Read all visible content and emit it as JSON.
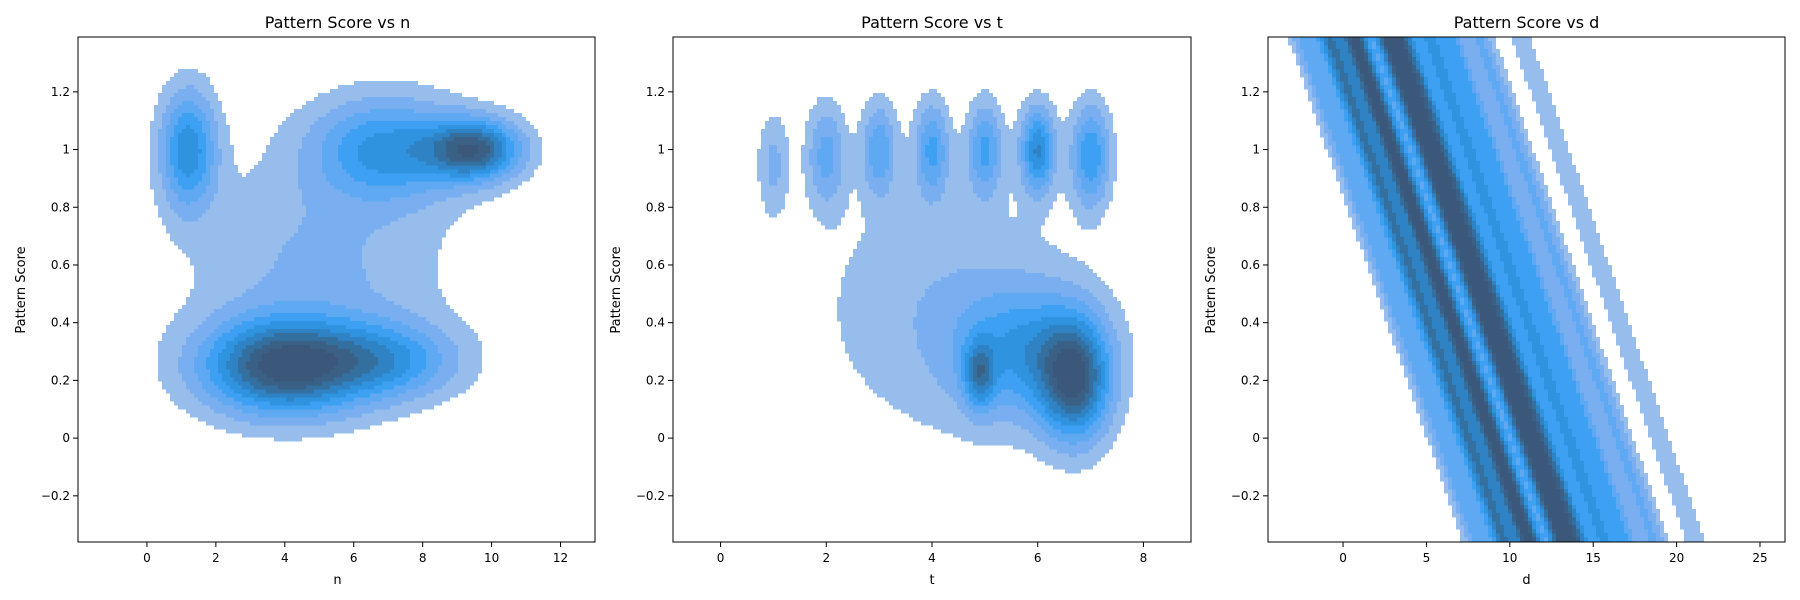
{
  "chart_data": [
    {
      "type": "kde-contour",
      "title": "Pattern Score vs n",
      "xlabel": "n",
      "ylabel": "Pattern Score",
      "xlim": [
        -2,
        13
      ],
      "ylim": [
        -0.36,
        1.39
      ],
      "xticks": [
        0,
        2,
        4,
        6,
        8,
        10,
        12
      ],
      "yticks": [
        -0.2,
        0.0,
        0.2,
        0.4,
        0.6,
        0.8,
        1.0,
        1.2
      ],
      "levels": 9,
      "density_peaks": [
        {
          "x": 4.0,
          "y": 0.25,
          "sx": 1.6,
          "sy": 0.11,
          "w": 1.0
        },
        {
          "x": 7.0,
          "y": 0.27,
          "sx": 1.4,
          "sy": 0.09,
          "w": 0.45
        },
        {
          "x": 9.5,
          "y": 1.0,
          "sx": 0.9,
          "sy": 0.07,
          "w": 0.85
        },
        {
          "x": 7.0,
          "y": 1.0,
          "sx": 1.5,
          "sy": 0.12,
          "w": 0.55
        },
        {
          "x": 1.2,
          "y": 1.0,
          "sx": 0.55,
          "sy": 0.14,
          "w": 0.6
        },
        {
          "x": 5.0,
          "y": 0.6,
          "sx": 2.5,
          "sy": 0.25,
          "w": 0.2
        }
      ]
    },
    {
      "type": "kde-contour",
      "title": "Pattern Score vs t",
      "xlabel": "t",
      "ylabel": "Pattern Score",
      "xlim": [
        -0.9,
        8.9
      ],
      "ylim": [
        -0.36,
        1.39
      ],
      "xticks": [
        0,
        2,
        4,
        6,
        8
      ],
      "yticks": [
        -0.2,
        0.0,
        0.2,
        0.4,
        0.6,
        0.8,
        1.0,
        1.2
      ],
      "levels": 9,
      "density_peaks": [
        {
          "x": 6.7,
          "y": 0.2,
          "sx": 0.45,
          "sy": 0.14,
          "w": 1.0
        },
        {
          "x": 4.9,
          "y": 0.22,
          "sx": 0.2,
          "sy": 0.08,
          "w": 0.6
        },
        {
          "x": 5.8,
          "y": 0.3,
          "sx": 0.9,
          "sy": 0.15,
          "w": 0.55
        },
        {
          "x": 6.0,
          "y": 1.0,
          "sx": 0.22,
          "sy": 0.1,
          "w": 0.75
        },
        {
          "x": 7.0,
          "y": 0.98,
          "sx": 0.25,
          "sy": 0.12,
          "w": 0.6
        },
        {
          "x": 5.0,
          "y": 1.0,
          "sx": 0.22,
          "sy": 0.11,
          "w": 0.5
        },
        {
          "x": 4.0,
          "y": 1.0,
          "sx": 0.22,
          "sy": 0.11,
          "w": 0.5
        },
        {
          "x": 3.0,
          "y": 1.0,
          "sx": 0.22,
          "sy": 0.11,
          "w": 0.45
        },
        {
          "x": 2.0,
          "y": 0.98,
          "sx": 0.25,
          "sy": 0.12,
          "w": 0.4
        },
        {
          "x": 1.0,
          "y": 0.95,
          "sx": 0.2,
          "sy": 0.12,
          "w": 0.25
        },
        {
          "x": 4.2,
          "y": 0.45,
          "sx": 1.6,
          "sy": 0.3,
          "w": 0.2
        }
      ]
    },
    {
      "type": "kde-contour",
      "title": "Pattern Score vs d",
      "xlabel": "d",
      "ylabel": "Pattern Score",
      "xlim": [
        -4.5,
        26.5
      ],
      "ylim": [
        -0.36,
        1.39
      ],
      "xticks": [
        0,
        5,
        10,
        15,
        20,
        25
      ],
      "yticks": [
        -0.2,
        0.0,
        0.2,
        0.4,
        0.6,
        0.8,
        1.0,
        1.2
      ],
      "levels": 9,
      "band_slope_x_per_y": -6.0,
      "density_ridges": [
        {
          "x_at_y0": 9.0,
          "sx": 0.55,
          "w": 0.85
        },
        {
          "x_at_y0": 11.0,
          "sx": 0.55,
          "w": 0.8
        },
        {
          "x_at_y0": 12.0,
          "sx": 0.5,
          "w": 0.55
        },
        {
          "x_at_y0": 7.5,
          "sx": 0.5,
          "w": 0.6
        },
        {
          "x_at_y0": 13.5,
          "sx": 0.5,
          "w": 0.45
        },
        {
          "x_at_y0": 14.8,
          "sx": 0.5,
          "w": 0.35
        },
        {
          "x_at_y0": 6.0,
          "sx": 0.55,
          "w": 0.3
        },
        {
          "x_at_y0": 16.5,
          "sx": 0.55,
          "w": 0.25
        },
        {
          "x_at_y0": 19.0,
          "sx": 0.5,
          "w": 0.12
        }
      ]
    }
  ]
}
